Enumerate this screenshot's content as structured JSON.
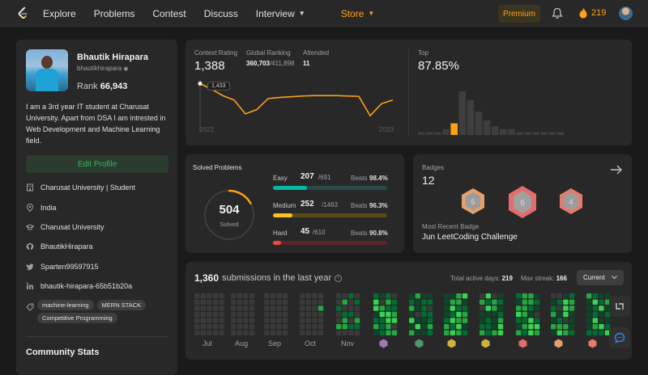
{
  "nav": {
    "items": [
      {
        "label": "Explore"
      },
      {
        "label": "Problems"
      },
      {
        "label": "Contest"
      },
      {
        "label": "Discuss"
      },
      {
        "label": "Interview"
      },
      {
        "label": "Store"
      }
    ],
    "premium": "Premium",
    "streak": "219"
  },
  "profile": {
    "name": "Bhautik Hirapara",
    "username": "bhautikhirapara",
    "rank_label": "Rank",
    "rank": "66,943",
    "bio": "I am a 3rd year IT student at Charusat University. Apart from DSA I am intrested in Web Development and Machine Learning field.",
    "edit": "Edit Profile",
    "info": [
      {
        "icon": "building-icon",
        "text": "Charusat University | Student"
      },
      {
        "icon": "location-icon",
        "text": "India"
      },
      {
        "icon": "graduation-cap-icon",
        "text": "Charusat University"
      },
      {
        "icon": "github-icon",
        "text": "BhautikHirapara"
      },
      {
        "icon": "twitter-icon",
        "text": "Sparten99597915"
      },
      {
        "icon": "linkedin-icon",
        "text": "bhautik-hirapara-65b51b20a"
      }
    ],
    "skills": [
      "machine-learning",
      "MERN STACK",
      "Competitive Programming"
    ],
    "community_stats": "Community Stats"
  },
  "contest": {
    "rating_label": "Contest Rating",
    "rating": "1,388",
    "global_label": "Global Ranking",
    "global_rank": "360,703",
    "global_total": "/411,898",
    "attended_label": "Attended",
    "attended": "11",
    "tooltip": "1,433",
    "year_start": "2022",
    "year_end": "2023",
    "top_label": "Top",
    "top_value": "87.85%"
  },
  "rating_chart": {
    "type": "line",
    "values": [
      1433,
      1418,
      1400,
      1388,
      1350,
      1362,
      1392,
      1395,
      1397,
      1399,
      1400,
      1400,
      1400,
      1399,
      1398,
      1345,
      1378,
      1388
    ]
  },
  "histogram": {
    "type": "bar",
    "values": [
      1,
      1,
      1,
      2,
      4,
      15,
      12,
      8,
      5,
      3,
      2,
      2,
      1,
      1,
      1,
      1,
      1,
      1
    ],
    "highlight_index": 4,
    "colors": {
      "normal": "#3e3e3e",
      "highlight": "#ffa116"
    }
  },
  "solved": {
    "title": "Solved Problems",
    "total": "504",
    "total_label": "Solved",
    "ring_fraction": 0.17,
    "beats_label": "Beats",
    "levels": [
      {
        "name": "Easy",
        "solved": "207",
        "total": "/691",
        "beats": "98.4%",
        "fraction": 0.3,
        "color": "#00b8a3",
        "track": "#2a4a47"
      },
      {
        "name": "Medium",
        "solved": "252",
        "total": "/1463",
        "beats": "96.3%",
        "fraction": 0.17,
        "color": "#ffc01e",
        "track": "#5a4a1a"
      },
      {
        "name": "Hard",
        "solved": "45",
        "total": "/610",
        "beats": "90.8%",
        "fraction": 0.07,
        "color": "#ef4743",
        "track": "#5a2626"
      }
    ]
  },
  "badges": {
    "title": "Badges",
    "count": "12",
    "recent_label": "Most Recent Badge",
    "recent_name": "Jun LeetCoding Challenge",
    "items": [
      {
        "text": "5",
        "color": "#e5a06a"
      },
      {
        "text": "6",
        "color": "#e46c6c"
      },
      {
        "text": "4",
        "color": "#e57b6a"
      }
    ]
  },
  "submissions": {
    "count": "1,360",
    "label": "submissions in the last year",
    "active_label": "Total active days:",
    "active_days": "219",
    "streak_label": "Max streak:",
    "max_streak": "166",
    "dropdown": "Current",
    "months": [
      "Jul",
      "Aug",
      "Sep",
      "Oct",
      "Nov"
    ]
  }
}
